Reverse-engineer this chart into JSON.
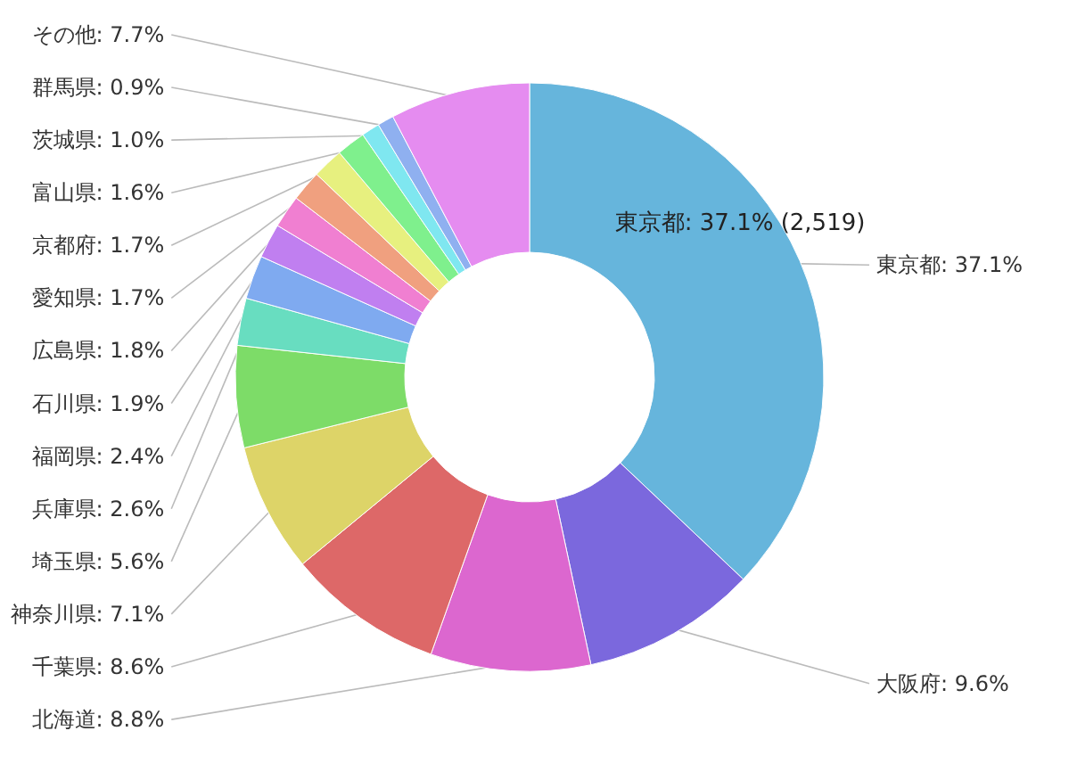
{
  "chart_data": {
    "type": "donut",
    "categories": [
      "東京都",
      "大阪府",
      "北海道",
      "千葉県",
      "神奈川県",
      "埼玉県",
      "兵庫県",
      "福岡県",
      "石川県",
      "広島県",
      "愛知県",
      "京都府",
      "富山県",
      "茨城県",
      "群馬県",
      "その他"
    ],
    "values": [
      37.1,
      9.6,
      8.8,
      8.6,
      7.1,
      5.6,
      2.6,
      2.4,
      1.9,
      1.8,
      1.7,
      1.7,
      1.6,
      1.0,
      0.9,
      7.7
    ],
    "colors": [
      "#66b5dc",
      "#7b68dd",
      "#dc67cf",
      "#dd6868",
      "#ddd468",
      "#7ddc68",
      "#68ddc0",
      "#7faaf0",
      "#c07ff0",
      "#f07fd1",
      "#f0a07f",
      "#e7f07f",
      "#7ff08d",
      "#7fe7f0",
      "#8fb0f0",
      "#e58cf0"
    ],
    "value_labels": [
      "37.1%",
      "9.6%",
      "8.8%",
      "8.6%",
      "7.1%",
      "5.6%",
      "2.6%",
      "2.4%",
      "1.9%",
      "1.8%",
      "1.7%",
      "1.7%",
      "1.6%",
      "1.0%",
      "0.9%",
      "7.7%"
    ],
    "annotations": [
      "東京都: 37.1% (2,519)"
    ]
  }
}
